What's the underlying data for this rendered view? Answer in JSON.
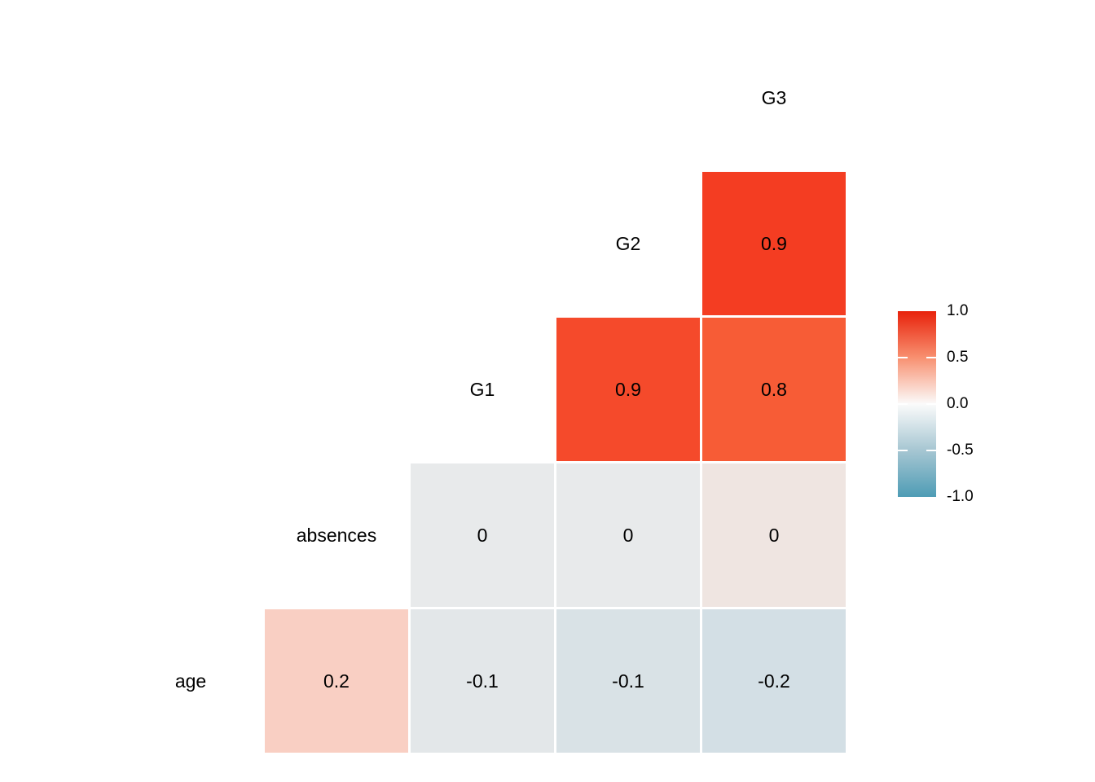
{
  "chart_data": {
    "type": "heatmap",
    "title": "",
    "description": "Lower-triangle correlation matrix heatmap with variable names on the diagonal and correlation coefficients in colored cells",
    "variables": [
      "age",
      "absences",
      "G1",
      "G2",
      "G3"
    ],
    "cells": [
      {
        "row": "G2",
        "col": "G3",
        "value": 0.9,
        "label": "0.9",
        "color": "#f43d22"
      },
      {
        "row": "G1",
        "col": "G2",
        "value": 0.9,
        "label": "0.9",
        "color": "#f54a2b"
      },
      {
        "row": "G1",
        "col": "G3",
        "value": 0.8,
        "label": "0.8",
        "color": "#f75c36"
      },
      {
        "row": "absences",
        "col": "G1",
        "value": 0,
        "label": "0",
        "color": "#e8eaeb"
      },
      {
        "row": "absences",
        "col": "G2",
        "value": 0,
        "label": "0",
        "color": "#e8eaeb"
      },
      {
        "row": "absences",
        "col": "G3",
        "value": 0,
        "label": "0",
        "color": "#efe5e1"
      },
      {
        "row": "age",
        "col": "absences",
        "value": 0.2,
        "label": "0.2",
        "color": "#f9cfc3"
      },
      {
        "row": "age",
        "col": "G1",
        "value": -0.1,
        "label": "-0.1",
        "color": "#e3e7e9"
      },
      {
        "row": "age",
        "col": "G2",
        "value": -0.1,
        "label": "-0.1",
        "color": "#d9e2e6"
      },
      {
        "row": "age",
        "col": "G3",
        "value": -0.2,
        "label": "-0.2",
        "color": "#d3dfe5"
      }
    ],
    "legend": {
      "ticks": [
        "1.0",
        "0.5",
        "0.0",
        "-0.5",
        "-1.0"
      ],
      "range": [
        -1.0,
        1.0
      ],
      "position": "right",
      "gradient_stops": [
        "#e8220b",
        "#f89070",
        "#fbfbfb",
        "#a6c6d2",
        "#4e9cb5"
      ],
      "high_color": "#e8220b",
      "mid_color": "#fbfbfb",
      "low_color": "#4e9cb5"
    },
    "grid": false,
    "background_color": "#ffffff",
    "text_color": "#000000"
  }
}
